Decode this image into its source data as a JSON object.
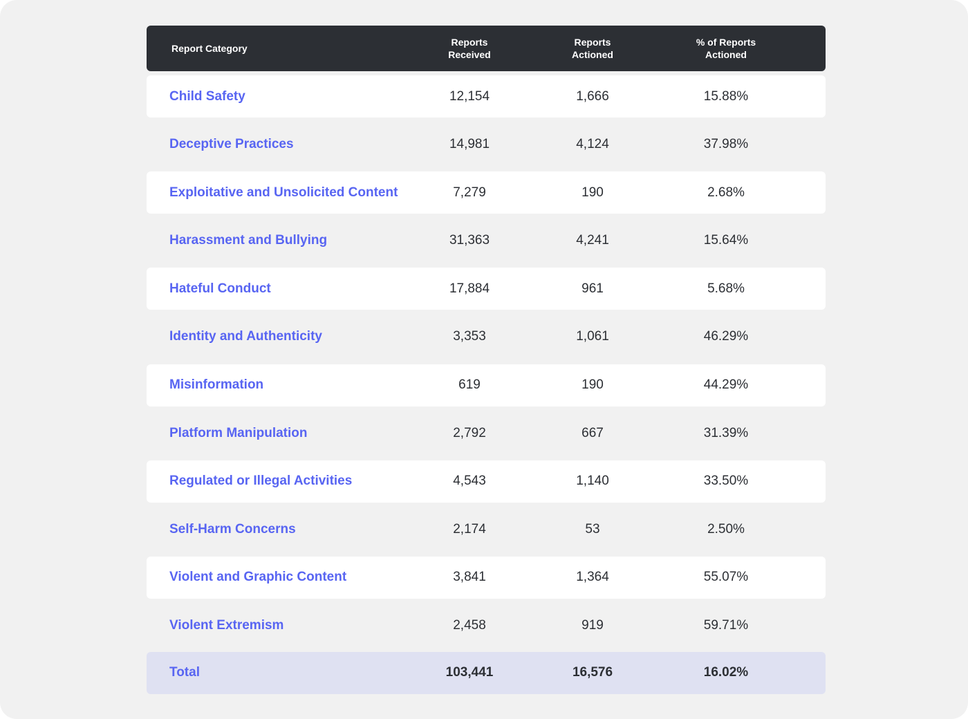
{
  "colors": {
    "header_bg": "#2c2f34",
    "accent": "#5865f2",
    "total_bg": "#dfe1f2",
    "page_bg": "#f1f1f1"
  },
  "header": {
    "category": "Report Category",
    "received": "Reports\nReceived",
    "actioned": "Reports\nActioned",
    "percent": "% of Reports\nActioned"
  },
  "rows": [
    {
      "category": "Child Safety",
      "received": "12,154",
      "actioned": "1,666",
      "percent": "15.88%"
    },
    {
      "category": "Deceptive Practices",
      "received": "14,981",
      "actioned": "4,124",
      "percent": "37.98%"
    },
    {
      "category": "Exploitative and Unsolicited Content",
      "received": "7,279",
      "actioned": "190",
      "percent": "2.68%"
    },
    {
      "category": "Harassment and Bullying",
      "received": "31,363",
      "actioned": "4,241",
      "percent": "15.64%"
    },
    {
      "category": "Hateful Conduct",
      "received": "17,884",
      "actioned": "961",
      "percent": "5.68%"
    },
    {
      "category": "Identity and Authenticity",
      "received": "3,353",
      "actioned": "1,061",
      "percent": "46.29%"
    },
    {
      "category": "Misinformation",
      "received": "619",
      "actioned": "190",
      "percent": "44.29%"
    },
    {
      "category": "Platform Manipulation",
      "received": "2,792",
      "actioned": "667",
      "percent": "31.39%"
    },
    {
      "category": "Regulated or Illegal Activities",
      "received": "4,543",
      "actioned": "1,140",
      "percent": "33.50%"
    },
    {
      "category": "Self-Harm Concerns",
      "received": "2,174",
      "actioned": "53",
      "percent": "2.50%"
    },
    {
      "category": "Violent and Graphic Content",
      "received": "3,841",
      "actioned": "1,364",
      "percent": "55.07%"
    },
    {
      "category": "Violent Extremism",
      "received": "2,458",
      "actioned": "919",
      "percent": "59.71%"
    }
  ],
  "total": {
    "category": "Total",
    "received": "103,441",
    "actioned": "16,576",
    "percent": "16.02%"
  }
}
